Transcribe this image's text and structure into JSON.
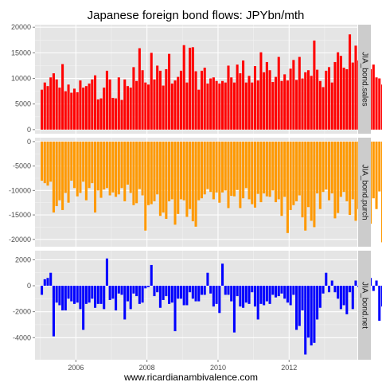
{
  "chart_data": {
    "type": "bar",
    "title": "Japanese foreign bond flows: JPYbn/mth",
    "caption": "www.ricardianambivalence.com",
    "x_start": "2005-01",
    "x_ticks": [
      "2006",
      "2008",
      "2010",
      "2012"
    ],
    "colors": {
      "panel_bg": "#e5e5e5",
      "grid": "#ffffff",
      "strip_bg": "#cccccc"
    },
    "panels": [
      {
        "name": "JIA_bond.sales",
        "color": "#ff0000",
        "ylim": [
          -800,
          20500
        ],
        "yticks": [
          0,
          5000,
          10000,
          15000,
          20000
        ],
        "values": [
          7800,
          9200,
          8500,
          10200,
          11000,
          9800,
          8200,
          12800,
          7500,
          8800,
          7200,
          8000,
          7300,
          9600,
          8200,
          8500,
          9000,
          9800,
          10600,
          5900,
          6100,
          8200,
          11500,
          9800,
          6200,
          6100,
          10200,
          5800,
          9800,
          8500,
          8200,
          12200,
          9500,
          15900,
          11600,
          9200,
          8800,
          15000,
          9800,
          12500,
          11500,
          8600,
          11800,
          14800,
          9000,
          9600,
          10300,
          11500,
          16500,
          9200,
          16000,
          16100,
          11400,
          7800,
          11500,
          12100,
          9000,
          10000,
          10200,
          9500,
          9000,
          9500,
          9200,
          12500,
          10200,
          9200,
          12700,
          11000,
          13500,
          9200,
          10500,
          9200,
          12400,
          9600,
          15100,
          11200,
          13200,
          11600,
          9300,
          10300,
          14200,
          9500,
          10800,
          9600,
          11900,
          13600,
          9700,
          14200,
          10000,
          11200,
          11600,
          10500,
          17400,
          11700,
          9500,
          8300,
          11500,
          12200,
          9200,
          13200,
          15100,
          14400,
          12100,
          11800,
          18600,
          13100,
          16400,
          13500,
          11200,
          9500,
          13400,
          11800,
          12700,
          10200,
          10000,
          8800,
          12700,
          14100,
          11500,
          19400,
          18300,
          10800
        ]
      },
      {
        "name": "JIA_bond.purch",
        "color": "#ff9900",
        "ylim": [
          -21500,
          800
        ],
        "yticks": [
          0,
          -5000,
          -10000,
          -15000,
          -20000
        ],
        "values": [
          -8000,
          -8500,
          -9000,
          -8200,
          -14500,
          -13200,
          -12000,
          -14000,
          -10500,
          -12500,
          -8000,
          -9500,
          -11200,
          -10500,
          -8200,
          -12000,
          -9500,
          -8500,
          -14500,
          -10000,
          -11500,
          -9800,
          -9500,
          -11000,
          -10400,
          -11300,
          -10800,
          -9500,
          -12200,
          -8800,
          -10500,
          -13000,
          -12600,
          -9700,
          -11000,
          -18200,
          -13000,
          -12800,
          -12200,
          -10800,
          -15200,
          -14500,
          -15800,
          -12200,
          -11800,
          -17000,
          -14800,
          -11800,
          -12000,
          -15400,
          -13800,
          -16300,
          -17400,
          -12000,
          -11600,
          -10800,
          -9700,
          -10300,
          -11800,
          -10400,
          -12500,
          -10400,
          -10000,
          -13600,
          -11100,
          -11200,
          -9900,
          -13600,
          -11600,
          -9500,
          -11800,
          -12800,
          -13500,
          -10700,
          -12400,
          -10600,
          -11200,
          -11300,
          -10000,
          -12400,
          -11800,
          -15200,
          -11300,
          -18700,
          -14000,
          -13000,
          -12200,
          -11000,
          -15500,
          -18200,
          -13400,
          -16200,
          -17500,
          -10600,
          -13800,
          -10300,
          -9800,
          -12000,
          -10600,
          -15700,
          -14600,
          -11300,
          -10300,
          -12200,
          -15000,
          -11800,
          -16200,
          -13800,
          -11400,
          -14000,
          -18100,
          -16800,
          -11600,
          -13800,
          -10200,
          -20600,
          -15800,
          -18800,
          -11000,
          -10600,
          -12900,
          -18500,
          -16400,
          -10800
        ]
      },
      {
        "name": "JIA_bond.net",
        "color": "#0000ff",
        "ylim": [
          -5700,
          2700
        ],
        "yticks": [
          2000,
          0,
          -2000,
          -4000
        ],
        "values": [
          -700,
          500,
          600,
          1000,
          -3900,
          -1300,
          -1500,
          -1900,
          -1900,
          -1000,
          -1200,
          -1400,
          -1300,
          -1800,
          -3400,
          -1400,
          -1300,
          -1000,
          -1700,
          -1400,
          -1400,
          -1800,
          2100,
          -1100,
          -1000,
          -1900,
          -600,
          -700,
          -2600,
          -1200,
          -1800,
          -600,
          -800,
          -1400,
          -1300,
          -200,
          -100,
          1600,
          -800,
          -500,
          -1700,
          -1100,
          -800,
          -1400,
          -1300,
          -3500,
          -1000,
          -1000,
          -1500,
          -1500,
          -500,
          -1000,
          -1200,
          -1200,
          -700,
          -700,
          1000,
          -600,
          -1600,
          -1400,
          -2100,
          1700,
          -700,
          -700,
          -1200,
          -3600,
          -800,
          -1600,
          -1700,
          -1300,
          -1400,
          -500,
          -1600,
          -2600,
          -1400,
          -1500,
          -1200,
          -1400,
          -700,
          -900,
          -800,
          -600,
          -1000,
          -1300,
          -1500,
          -700,
          -3400,
          -3100,
          -1900,
          -5300,
          -4000,
          -4600,
          -4400,
          -2600,
          -1700,
          -600,
          1000,
          -500,
          400,
          -500,
          -1000,
          -1800,
          -1500,
          -2200,
          -500,
          -1800,
          400,
          -100,
          -200,
          600,
          -1200,
          600,
          -400,
          400,
          -2700,
          -1600,
          -2600,
          -2700,
          -1600,
          -1300,
          2600,
          -1500,
          -1600,
          -1100,
          -2200,
          -1200,
          -1400,
          -2700,
          -1500,
          -1600,
          -1400,
          -1300,
          2300,
          -1000,
          2100,
          200
        ]
      }
    ]
  }
}
